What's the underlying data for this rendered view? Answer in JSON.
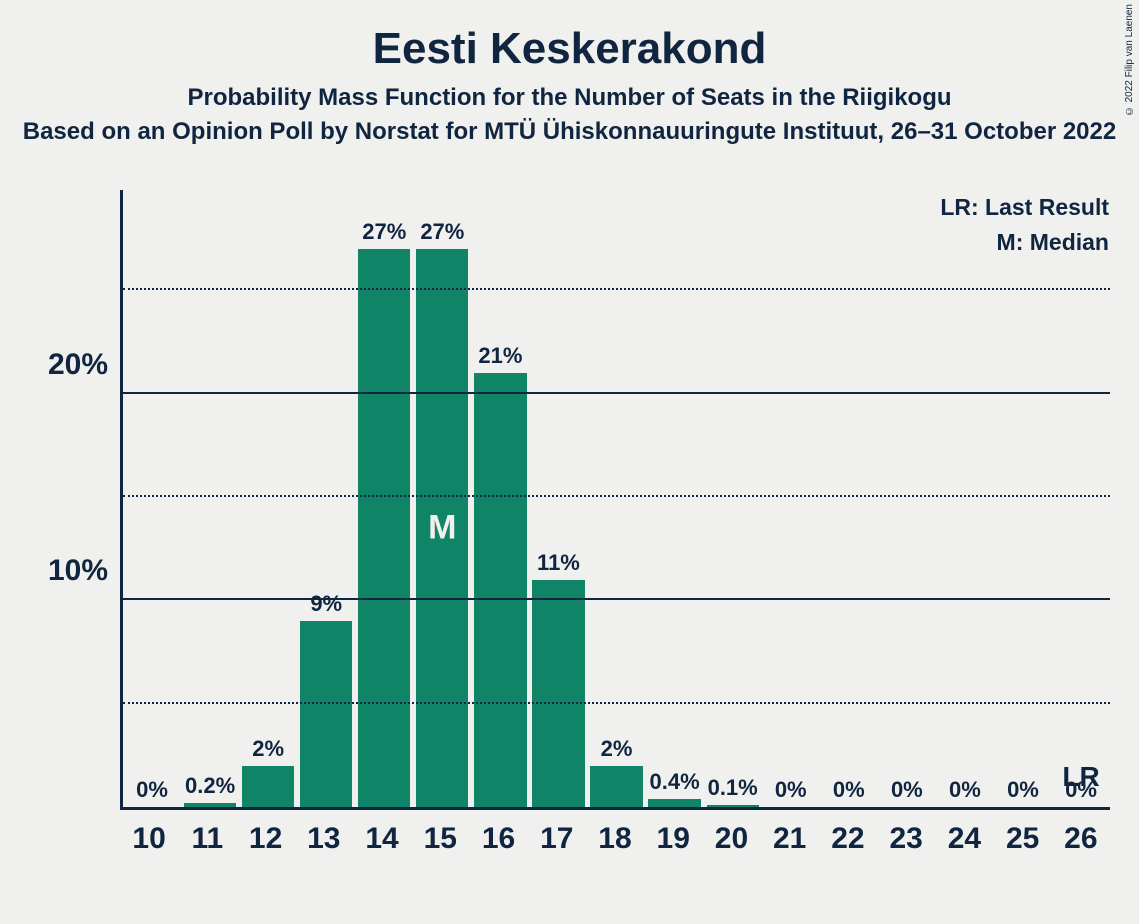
{
  "copyright": "© 2022 Filip van Laenen",
  "title": "Eesti Keskerakond",
  "subtitle": "Probability Mass Function for the Number of Seats in the Riigikogu",
  "subtitle2": "Based on an Opinion Poll by Norstat for MTÜ Ühiskonnauuringute Instituut, 26–31 October 2022",
  "legend": {
    "lr": "LR: Last Result",
    "m": "M: Median"
  },
  "chart": {
    "type": "bar",
    "bar_color": "#0f8466",
    "background_color": "#f0f0ee",
    "axis_color": "#10253f",
    "text_color": "#10253f",
    "median_text_color": "#f0f0ee",
    "grid_solid_color": "#10253f",
    "grid_dotted_color": "#10253f",
    "ylim": [
      0,
      30
    ],
    "y_major_ticks": [
      10,
      20
    ],
    "y_minor_ticks": [
      5,
      15,
      25
    ],
    "y_tick_labels": {
      "10": "10%",
      "20": "20%"
    },
    "categories": [
      "10",
      "11",
      "12",
      "13",
      "14",
      "15",
      "16",
      "17",
      "18",
      "19",
      "20",
      "21",
      "22",
      "23",
      "24",
      "25",
      "26"
    ],
    "values": [
      0,
      0.2,
      2,
      9,
      27,
      27,
      21,
      11,
      2,
      0.4,
      0.1,
      0,
      0,
      0,
      0,
      0,
      0
    ],
    "value_labels": [
      "0%",
      "0.2%",
      "2%",
      "9%",
      "27%",
      "27%",
      "21%",
      "11%",
      "2%",
      "0.4%",
      "0.1%",
      "0%",
      "0%",
      "0%",
      "0%",
      "0%",
      "0%"
    ],
    "median_index": 5,
    "median_label": "M",
    "lr_index": 16,
    "lr_label": "LR",
    "title_fontsize": 44,
    "subtitle_fontsize": 24,
    "axis_label_fontsize": 30,
    "bar_label_fontsize": 22,
    "legend_fontsize": 23,
    "bar_width_ratio": 0.9
  }
}
